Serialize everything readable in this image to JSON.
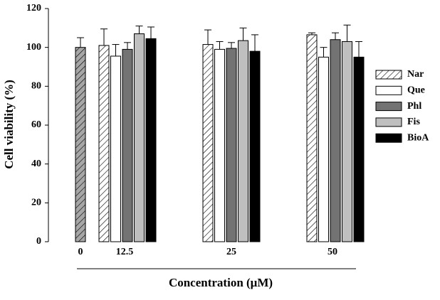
{
  "chart_data": {
    "type": "bar",
    "x_label": "Concentration (μM)",
    "y_label": "Cell viability (%)",
    "categories": [
      "0",
      "12.5",
      "25",
      "50"
    ],
    "ylim": [
      0,
      120
    ],
    "yticks": [
      0,
      20,
      40,
      60,
      80,
      100,
      120
    ],
    "baseline": {
      "color": "#a6a6a6",
      "hatch": true,
      "value": 100,
      "error": 5
    },
    "series": [
      {
        "name": "Nar",
        "color": "#ffffff",
        "hatch": true,
        "values": [
          null,
          101,
          101.5,
          106.5
        ],
        "errors": [
          null,
          8.5,
          7.5,
          1
        ]
      },
      {
        "name": "Que",
        "color": "#ffffff",
        "values": [
          null,
          95.5,
          99,
          95
        ],
        "errors": [
          null,
          6,
          4,
          5
        ]
      },
      {
        "name": "Phl",
        "color": "#737373",
        "values": [
          null,
          99,
          99.5,
          104
        ],
        "errors": [
          null,
          3.5,
          3,
          3.5
        ]
      },
      {
        "name": "Fis",
        "color": "#bfbfbf",
        "values": [
          null,
          107,
          103.5,
          103
        ],
        "errors": [
          null,
          4,
          6.5,
          8.5
        ]
      },
      {
        "name": "BioA",
        "color": "#000000",
        "values": [
          null,
          104.5,
          98,
          95
        ],
        "errors": [
          null,
          6,
          8.5,
          8
        ]
      }
    ]
  }
}
